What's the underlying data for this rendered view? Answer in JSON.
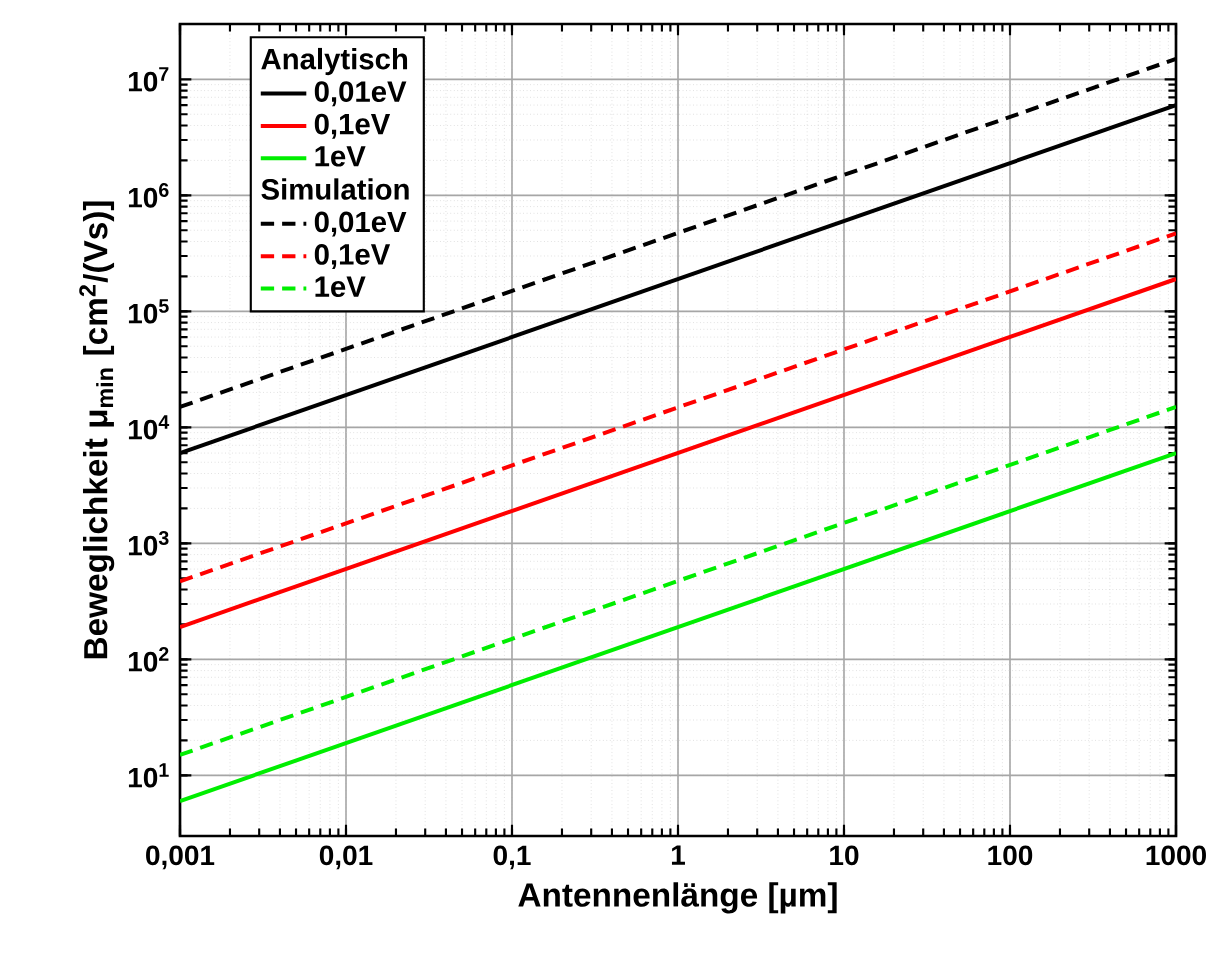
{
  "chart_data": {
    "type": "line",
    "xlabel": "Antennenlänge [µm]",
    "ylabel": "Beweglichkeit μ$_{min}$ [cm$^{2}$/(Vs)]",
    "legend_title": "Analytisch",
    "annotations": [
      "Simulation"
    ],
    "log": "xy",
    "grid": true,
    "legend": "top left",
    "x": [
      0.001,
      1000
    ],
    "xlim": [
      0.001,
      1000
    ],
    "ylim": [
      3,
      30000000
    ],
    "xticks": [
      {
        "value": 0.001,
        "label": "0,001"
      },
      {
        "value": 0.01,
        "label": "0,01"
      },
      {
        "value": 0.1,
        "label": "0,1"
      },
      {
        "value": 1,
        "label": "1"
      },
      {
        "value": 10,
        "label": "10"
      },
      {
        "value": 100,
        "label": "100"
      },
      {
        "value": 1000,
        "label": "1000"
      }
    ],
    "yticks": [
      {
        "value": 10,
        "label": "10$^{1}$"
      },
      {
        "value": 100,
        "label": "10$^{2}$"
      },
      {
        "value": 1000,
        "label": "10$^{3}$"
      },
      {
        "value": 10000,
        "label": "10$^{4}$"
      },
      {
        "value": 100000,
        "label": "10$^{5}$"
      },
      {
        "value": 1000000,
        "label": "10$^{6}$"
      },
      {
        "value": 10000000,
        "label": "10$^{7}$"
      }
    ],
    "series": [
      {
        "name": "0,01eV",
        "color": "#000000",
        "line_style": "solid",
        "values": [
          6000,
          6000000
        ]
      },
      {
        "name": "0,1eV",
        "color": "#ff0000",
        "line_style": "solid",
        "values": [
          190,
          190000
        ]
      },
      {
        "name": "1eV",
        "color": "#00ee00",
        "line_style": "solid",
        "values": [
          6,
          6000
        ]
      },
      {
        "name": "0,01eV",
        "color": "#000000",
        "line_style": "dashed",
        "values": [
          15000,
          15000000
        ]
      },
      {
        "name": "0,1eV",
        "color": "#ff0000",
        "line_style": "dashed",
        "values": [
          470,
          470000
        ]
      },
      {
        "name": "1eV",
        "color": "#00ee00",
        "line_style": "dashed",
        "values": [
          15,
          15000
        ]
      }
    ]
  }
}
